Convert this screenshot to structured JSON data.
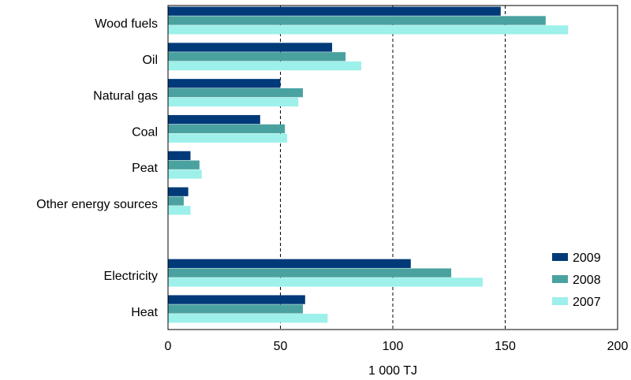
{
  "chart_data": {
    "type": "bar",
    "orientation": "horizontal",
    "xlabel": "1 000 TJ",
    "xlim": [
      0,
      200
    ],
    "xticks": [
      0,
      50,
      100,
      150,
      200
    ],
    "grid": "vertical dashed lines at 50, 100, 150",
    "legend_position": "bottom-right",
    "categories": [
      "Wood fuels",
      "Oil",
      "Natural gas",
      "Coal",
      "Peat",
      "Other energy sources",
      "",
      "Electricity",
      "Heat"
    ],
    "series": [
      {
        "name": "2009",
        "color": "#003a78",
        "values": [
          148,
          73,
          50,
          41,
          10,
          9,
          null,
          108,
          61
        ]
      },
      {
        "name": "2008",
        "color": "#4aa2a0",
        "values": [
          168,
          79,
          60,
          52,
          14,
          7,
          null,
          126,
          60
        ]
      },
      {
        "name": "2007",
        "color": "#9ef0ea",
        "values": [
          178,
          86,
          58,
          53,
          15,
          10,
          null,
          140,
          71
        ]
      }
    ]
  }
}
